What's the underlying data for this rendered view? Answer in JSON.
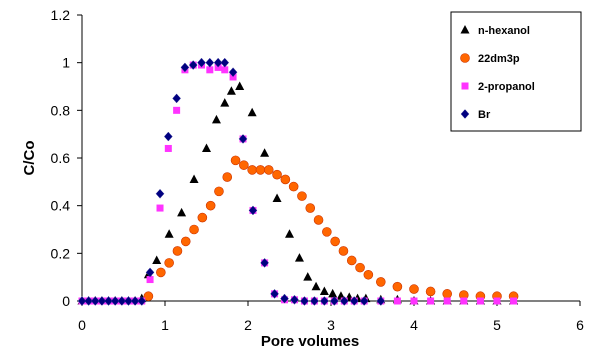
{
  "chart_data": {
    "type": "scatter",
    "title": "",
    "xlabel": "Pore volumes",
    "ylabel": "C/Co",
    "xlim": [
      0,
      6
    ],
    "ylim": [
      0,
      1.2
    ],
    "x_ticks": [
      "0",
      "1",
      "2",
      "3",
      "4",
      "5",
      "6"
    ],
    "y_ticks": [
      "0",
      "0.2",
      "0.4",
      "0.6",
      "0.8",
      "1",
      "1.2"
    ],
    "grid": false,
    "legend_position": "top-right",
    "series": [
      {
        "name": "n-hexanol",
        "marker": "triangle",
        "color": "#000000",
        "x": [
          0.0,
          0.08,
          0.16,
          0.24,
          0.32,
          0.4,
          0.48,
          0.56,
          0.64,
          0.72,
          0.8,
          0.9,
          1.05,
          1.2,
          1.35,
          1.5,
          1.62,
          1.72,
          1.8,
          1.9,
          2.05,
          2.2,
          2.35,
          2.5,
          2.62,
          2.72,
          2.82,
          2.92,
          3.02,
          3.12,
          3.22,
          3.32,
          3.42,
          3.6,
          3.8,
          4.0,
          4.2,
          4.4,
          4.6,
          4.8,
          5.0,
          5.2
        ],
        "y": [
          0,
          0,
          0,
          0,
          0,
          0,
          0,
          0,
          0,
          0.01,
          0.11,
          0.17,
          0.28,
          0.37,
          0.51,
          0.64,
          0.76,
          0.83,
          0.88,
          0.9,
          0.79,
          0.62,
          0.43,
          0.28,
          0.18,
          0.1,
          0.06,
          0.04,
          0.03,
          0.02,
          0.015,
          0.01,
          0.01,
          0.005,
          0.005,
          0,
          0,
          0,
          0,
          0,
          0,
          0
        ]
      },
      {
        "name": "22dm3p",
        "marker": "circle",
        "color": "#ff6600",
        "x": [
          0.8,
          0.95,
          1.05,
          1.15,
          1.25,
          1.35,
          1.45,
          1.55,
          1.65,
          1.75,
          1.85,
          1.95,
          2.05,
          2.15,
          2.25,
          2.35,
          2.45,
          2.55,
          2.65,
          2.75,
          2.85,
          2.95,
          3.05,
          3.15,
          3.25,
          3.35,
          3.45,
          3.6,
          3.8,
          4.0,
          4.2,
          4.4,
          4.6,
          4.8,
          5.0,
          5.2
        ],
        "y": [
          0.02,
          0.12,
          0.16,
          0.21,
          0.25,
          0.3,
          0.35,
          0.4,
          0.46,
          0.52,
          0.59,
          0.57,
          0.55,
          0.55,
          0.55,
          0.53,
          0.51,
          0.48,
          0.44,
          0.39,
          0.34,
          0.29,
          0.25,
          0.21,
          0.17,
          0.14,
          0.11,
          0.08,
          0.06,
          0.05,
          0.04,
          0.03,
          0.025,
          0.02,
          0.02,
          0.02
        ]
      },
      {
        "name": "2-propanol",
        "marker": "square",
        "color": "#ff33ff",
        "x": [
          0.0,
          0.08,
          0.16,
          0.24,
          0.32,
          0.4,
          0.48,
          0.56,
          0.64,
          0.72,
          0.82,
          0.94,
          1.04,
          1.14,
          1.24,
          1.34,
          1.44,
          1.54,
          1.64,
          1.72,
          1.82,
          1.94,
          2.06,
          2.2,
          2.32,
          2.44,
          2.56,
          2.68,
          2.8,
          2.92,
          3.04,
          3.16,
          3.28,
          3.4,
          3.6,
          3.8,
          4.0,
          4.2,
          4.4,
          4.6,
          4.8,
          5.0,
          5.2
        ],
        "y": [
          0,
          0,
          0,
          0,
          0,
          0,
          0,
          0,
          0,
          0,
          0.09,
          0.39,
          0.64,
          0.8,
          0.97,
          0.99,
          0.99,
          0.97,
          0.98,
          0.97,
          0.94,
          0.68,
          0.38,
          0.16,
          0.03,
          0.005,
          0.005,
          0,
          0,
          0,
          0,
          0,
          0,
          0,
          0,
          0,
          0,
          0,
          0,
          0,
          0,
          0,
          0
        ]
      },
      {
        "name": "Br",
        "marker": "diamond",
        "color": "#000080",
        "x": [
          0.0,
          0.08,
          0.16,
          0.24,
          0.32,
          0.4,
          0.48,
          0.56,
          0.64,
          0.72,
          0.82,
          0.94,
          1.04,
          1.14,
          1.24,
          1.34,
          1.44,
          1.54,
          1.64,
          1.72,
          1.82,
          1.94,
          2.06,
          2.2,
          2.32,
          2.44,
          2.56,
          2.68,
          2.8,
          2.92,
          3.04,
          3.16,
          3.28,
          3.4,
          3.6
        ],
        "y": [
          0,
          0,
          0,
          0,
          0,
          0,
          0,
          0,
          0,
          0,
          0.12,
          0.45,
          0.69,
          0.85,
          0.98,
          0.99,
          1.0,
          1.0,
          1.0,
          1.0,
          0.96,
          0.68,
          0.38,
          0.16,
          0.03,
          0.01,
          0.005,
          0,
          0,
          0,
          0,
          0,
          0,
          0,
          0
        ]
      }
    ]
  }
}
